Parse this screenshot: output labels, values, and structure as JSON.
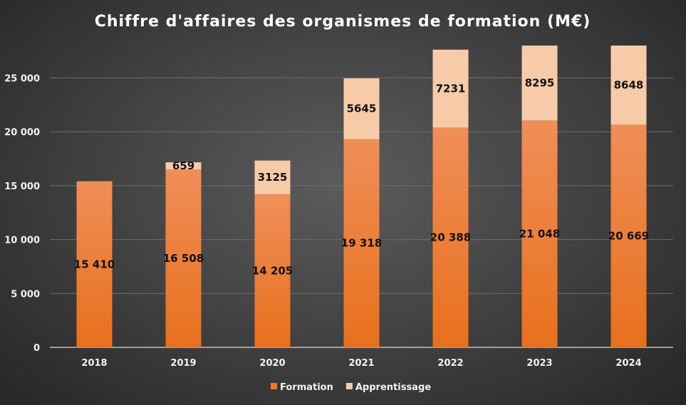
{
  "chart_data": {
    "type": "bar",
    "stacked": true,
    "title": "Chiffre d'affaires des organismes de formation (M€)",
    "categories": [
      "2018",
      "2019",
      "2020",
      "2021",
      "2022",
      "2023",
      "2024"
    ],
    "series": [
      {
        "name": "Formation",
        "values": [
          15410,
          16508,
          14205,
          19318,
          20388,
          21048,
          20669
        ],
        "color": "#ec7a2e"
      },
      {
        "name": "Apprentissage",
        "values": [
          null,
          659,
          3125,
          5645,
          7231,
          8295,
          8648
        ],
        "color": "#f8cba8"
      }
    ],
    "ylim": [
      0,
      28000
    ],
    "yticks": [
      0,
      5000,
      10000,
      15000,
      20000,
      25000
    ],
    "ytick_labels": [
      "0",
      "5 000",
      "10 000",
      "15 000",
      "20 000",
      "25 000"
    ],
    "grid": true,
    "legend": "bottom",
    "xlabel": "",
    "ylabel": ""
  }
}
